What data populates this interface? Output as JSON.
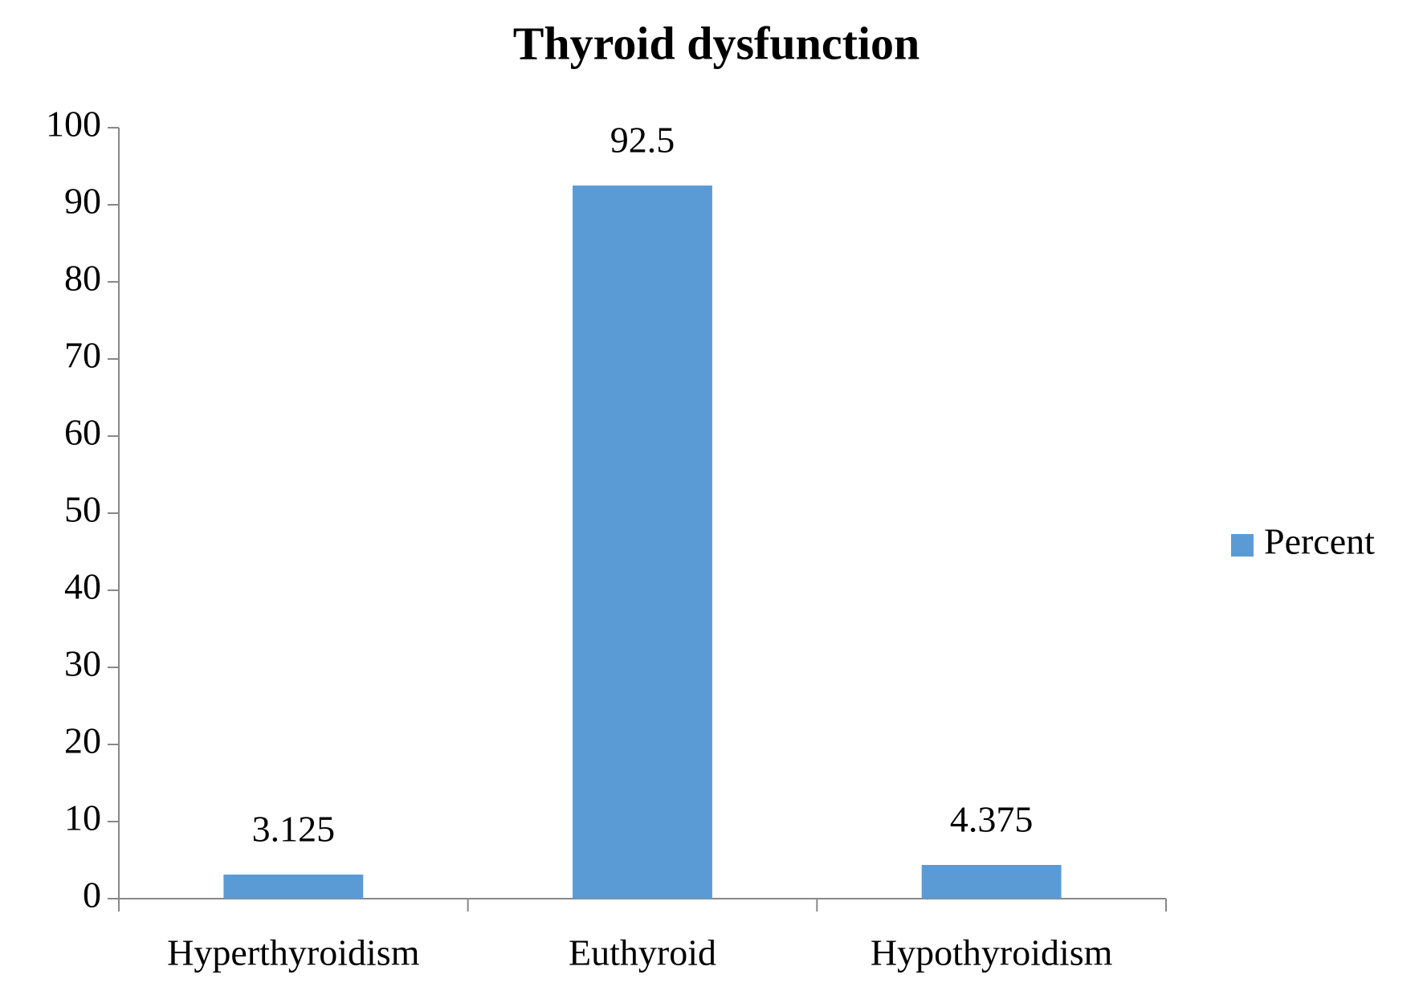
{
  "chart_data": {
    "type": "bar",
    "title": "Thyroid dysfunction",
    "categories": [
      "Hyperthyroidism",
      "Euthyroid",
      "Hypothyroidism"
    ],
    "series": [
      {
        "name": "Percent",
        "color": "#5b9bd5",
        "values": [
          3.125,
          92.5,
          4.375
        ]
      }
    ],
    "ylim": [
      0,
      100
    ],
    "yticks": [
      0,
      10,
      20,
      30,
      40,
      50,
      60,
      70,
      80,
      90,
      100
    ],
    "grid": false,
    "legend": "right",
    "data_labels": true
  }
}
